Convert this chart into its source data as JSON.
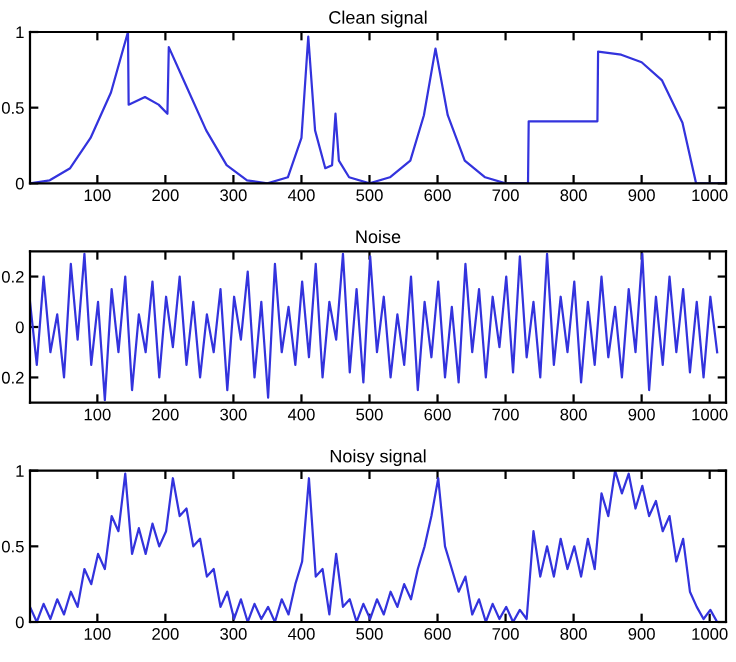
{
  "chart_data": [
    {
      "type": "line",
      "title": "Clean signal",
      "xlim": [
        1,
        1024
      ],
      "xticks": [
        100,
        200,
        300,
        400,
        500,
        600,
        700,
        800,
        900,
        1000
      ],
      "ylim": [
        0,
        1
      ],
      "yticks": [
        0,
        0.5,
        1
      ],
      "grid": false,
      "series": [
        {
          "color": "#3333dd",
          "x": [
            1,
            30,
            60,
            90,
            120,
            145,
            146,
            170,
            190,
            203,
            205,
            230,
            260,
            290,
            320,
            350,
            380,
            400,
            410,
            420,
            435,
            445,
            450,
            455,
            470,
            500,
            530,
            560,
            580,
            597,
            615,
            640,
            670,
            700,
            733,
            734,
            835,
            836,
            870,
            900,
            930,
            960,
            980,
            1024
          ],
          "values": [
            0,
            0.02,
            0.1,
            0.3,
            0.6,
            1.0,
            0.52,
            0.57,
            0.52,
            0.46,
            0.9,
            0.65,
            0.35,
            0.12,
            0.02,
            0,
            0.04,
            0.3,
            0.97,
            0.35,
            0.1,
            0.12,
            0.46,
            0.15,
            0.04,
            0,
            0.04,
            0.15,
            0.45,
            0.89,
            0.45,
            0.15,
            0.04,
            0,
            0,
            0.41,
            0.41,
            0.87,
            0.85,
            0.8,
            0.68,
            0.4,
            0,
            0
          ]
        }
      ]
    },
    {
      "type": "line",
      "title": "Noise",
      "xlim": [
        1,
        1024
      ],
      "xticks": [
        100,
        200,
        300,
        400,
        500,
        600,
        700,
        800,
        900,
        1000
      ],
      "ylim": [
        -0.3,
        0.3
      ],
      "yticks": [
        {
          "value": -0.2,
          "label": "0.2"
        },
        0,
        0.2
      ],
      "grid": false,
      "x": [
        1,
        11,
        21,
        31,
        41,
        51,
        61,
        71,
        81,
        91,
        101,
        111,
        121,
        131,
        141,
        151,
        161,
        171,
        181,
        191,
        201,
        211,
        221,
        231,
        241,
        251,
        261,
        271,
        281,
        291,
        301,
        311,
        321,
        331,
        341,
        351,
        361,
        371,
        381,
        391,
        401,
        411,
        421,
        431,
        441,
        451,
        461,
        471,
        481,
        491,
        501,
        511,
        521,
        531,
        541,
        551,
        561,
        571,
        581,
        591,
        601,
        611,
        621,
        631,
        641,
        651,
        661,
        671,
        681,
        691,
        701,
        711,
        721,
        731,
        741,
        751,
        761,
        771,
        781,
        791,
        801,
        811,
        821,
        831,
        841,
        851,
        861,
        871,
        881,
        891,
        901,
        911,
        921,
        931,
        941,
        951,
        961,
        971,
        981,
        991,
        1001,
        1011
      ],
      "series": [
        {
          "color": "#3333dd",
          "values": [
            0.1,
            -0.15,
            0.2,
            -0.1,
            0.05,
            -0.2,
            0.25,
            -0.05,
            0.29,
            -0.15,
            0.1,
            -0.29,
            0.15,
            -0.1,
            0.2,
            -0.25,
            0.05,
            -0.1,
            0.18,
            -0.2,
            0.12,
            -0.08,
            0.2,
            -0.15,
            0.1,
            -0.2,
            0.05,
            -0.1,
            0.15,
            -0.25,
            0.12,
            -0.05,
            0.22,
            -0.2,
            0.1,
            -0.28,
            0.25,
            -0.1,
            0.08,
            -0.15,
            0.18,
            -0.12,
            0.25,
            -0.2,
            0.1,
            -0.05,
            0.29,
            -0.18,
            0.15,
            -0.22,
            0.28,
            -0.1,
            0.12,
            -0.2,
            0.05,
            -0.15,
            0.2,
            -0.25,
            0.1,
            -0.12,
            0.18,
            -0.2,
            0.08,
            -0.22,
            0.25,
            -0.1,
            0.15,
            -0.2,
            0.12,
            -0.08,
            0.2,
            -0.18,
            0.28,
            -0.12,
            0.1,
            -0.2,
            0.29,
            -0.15,
            0.12,
            -0.1,
            0.18,
            -0.22,
            0.1,
            -0.15,
            0.2,
            -0.12,
            0.08,
            -0.2,
            0.15,
            -0.1,
            0.29,
            -0.25,
            0.12,
            -0.15,
            0.2,
            -0.1,
            0.15,
            -0.18,
            0.1,
            -0.2,
            0.12,
            -0.1
          ]
        }
      ]
    },
    {
      "type": "line",
      "title": "Noisy signal",
      "xlim": [
        1,
        1024
      ],
      "xticks": [
        100,
        200,
        300,
        400,
        500,
        600,
        700,
        800,
        900,
        1000
      ],
      "ylim": [
        0,
        1
      ],
      "yticks": [
        0,
        0.5,
        1
      ],
      "grid": false,
      "x": [
        1,
        11,
        21,
        31,
        41,
        51,
        61,
        71,
        81,
        91,
        101,
        111,
        121,
        131,
        141,
        151,
        161,
        171,
        181,
        191,
        201,
        211,
        221,
        231,
        241,
        251,
        261,
        271,
        281,
        291,
        301,
        311,
        321,
        331,
        341,
        351,
        361,
        371,
        381,
        391,
        401,
        411,
        421,
        431,
        441,
        451,
        461,
        471,
        481,
        491,
        501,
        511,
        521,
        531,
        541,
        551,
        561,
        571,
        581,
        591,
        601,
        611,
        621,
        631,
        641,
        651,
        661,
        671,
        681,
        691,
        701,
        711,
        721,
        731,
        741,
        751,
        761,
        771,
        781,
        791,
        801,
        811,
        821,
        831,
        841,
        851,
        861,
        871,
        881,
        891,
        901,
        911,
        921,
        931,
        941,
        951,
        961,
        971,
        981,
        991,
        1001,
        1011
      ],
      "series": [
        {
          "color": "#3333dd",
          "values": [
            0.1,
            0,
            0.12,
            0.02,
            0.15,
            0.05,
            0.2,
            0.1,
            0.35,
            0.25,
            0.45,
            0.35,
            0.7,
            0.6,
            0.98,
            0.45,
            0.62,
            0.45,
            0.65,
            0.5,
            0.6,
            0.95,
            0.7,
            0.75,
            0.5,
            0.55,
            0.3,
            0.35,
            0.1,
            0.2,
            0.02,
            0.15,
            0,
            0.12,
            0.02,
            0.1,
            0,
            0.15,
            0.05,
            0.25,
            0.4,
            0.95,
            0.3,
            0.35,
            0.05,
            0.45,
            0.1,
            0.15,
            0,
            0.12,
            0.02,
            0.15,
            0.05,
            0.2,
            0.1,
            0.25,
            0.15,
            0.35,
            0.5,
            0.7,
            0.95,
            0.5,
            0.35,
            0.2,
            0.3,
            0.05,
            0.15,
            0,
            0.12,
            0.02,
            0.1,
            0,
            0.08,
            0.02,
            0.6,
            0.3,
            0.5,
            0.3,
            0.55,
            0.35,
            0.5,
            0.3,
            0.55,
            0.35,
            0.85,
            0.7,
            1.0,
            0.85,
            0.98,
            0.75,
            0.9,
            0.7,
            0.8,
            0.6,
            0.7,
            0.4,
            0.55,
            0.2,
            0.1,
            0.02,
            0.08,
            0
          ]
        }
      ]
    }
  ]
}
